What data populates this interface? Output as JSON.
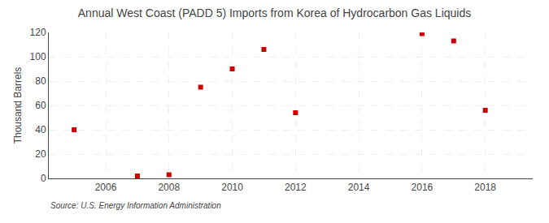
{
  "chart_data": {
    "type": "scatter",
    "title": "Annual West Coast (PADD 5) Imports from Korea of Hydrocarbon Gas Liquids",
    "ylabel": "Thousand Barrels",
    "annotations": [
      "Source: U.S. Energy Information Administration"
    ],
    "x": [
      2005,
      2007,
      2008,
      2009,
      2010,
      2011,
      2012,
      2016,
      2017,
      2018
    ],
    "values": [
      40,
      2,
      3,
      75,
      90,
      106,
      54,
      119,
      113,
      56
    ],
    "color": "#cc0000",
    "marker": "square",
    "xlim": [
      2004.2,
      2019.5
    ],
    "ylim": [
      0,
      120
    ],
    "xticks": [
      2006,
      2008,
      2010,
      2012,
      2014,
      2016,
      2018
    ],
    "yticks": [
      0,
      20,
      40,
      60,
      80,
      100,
      120
    ],
    "grid": true
  }
}
